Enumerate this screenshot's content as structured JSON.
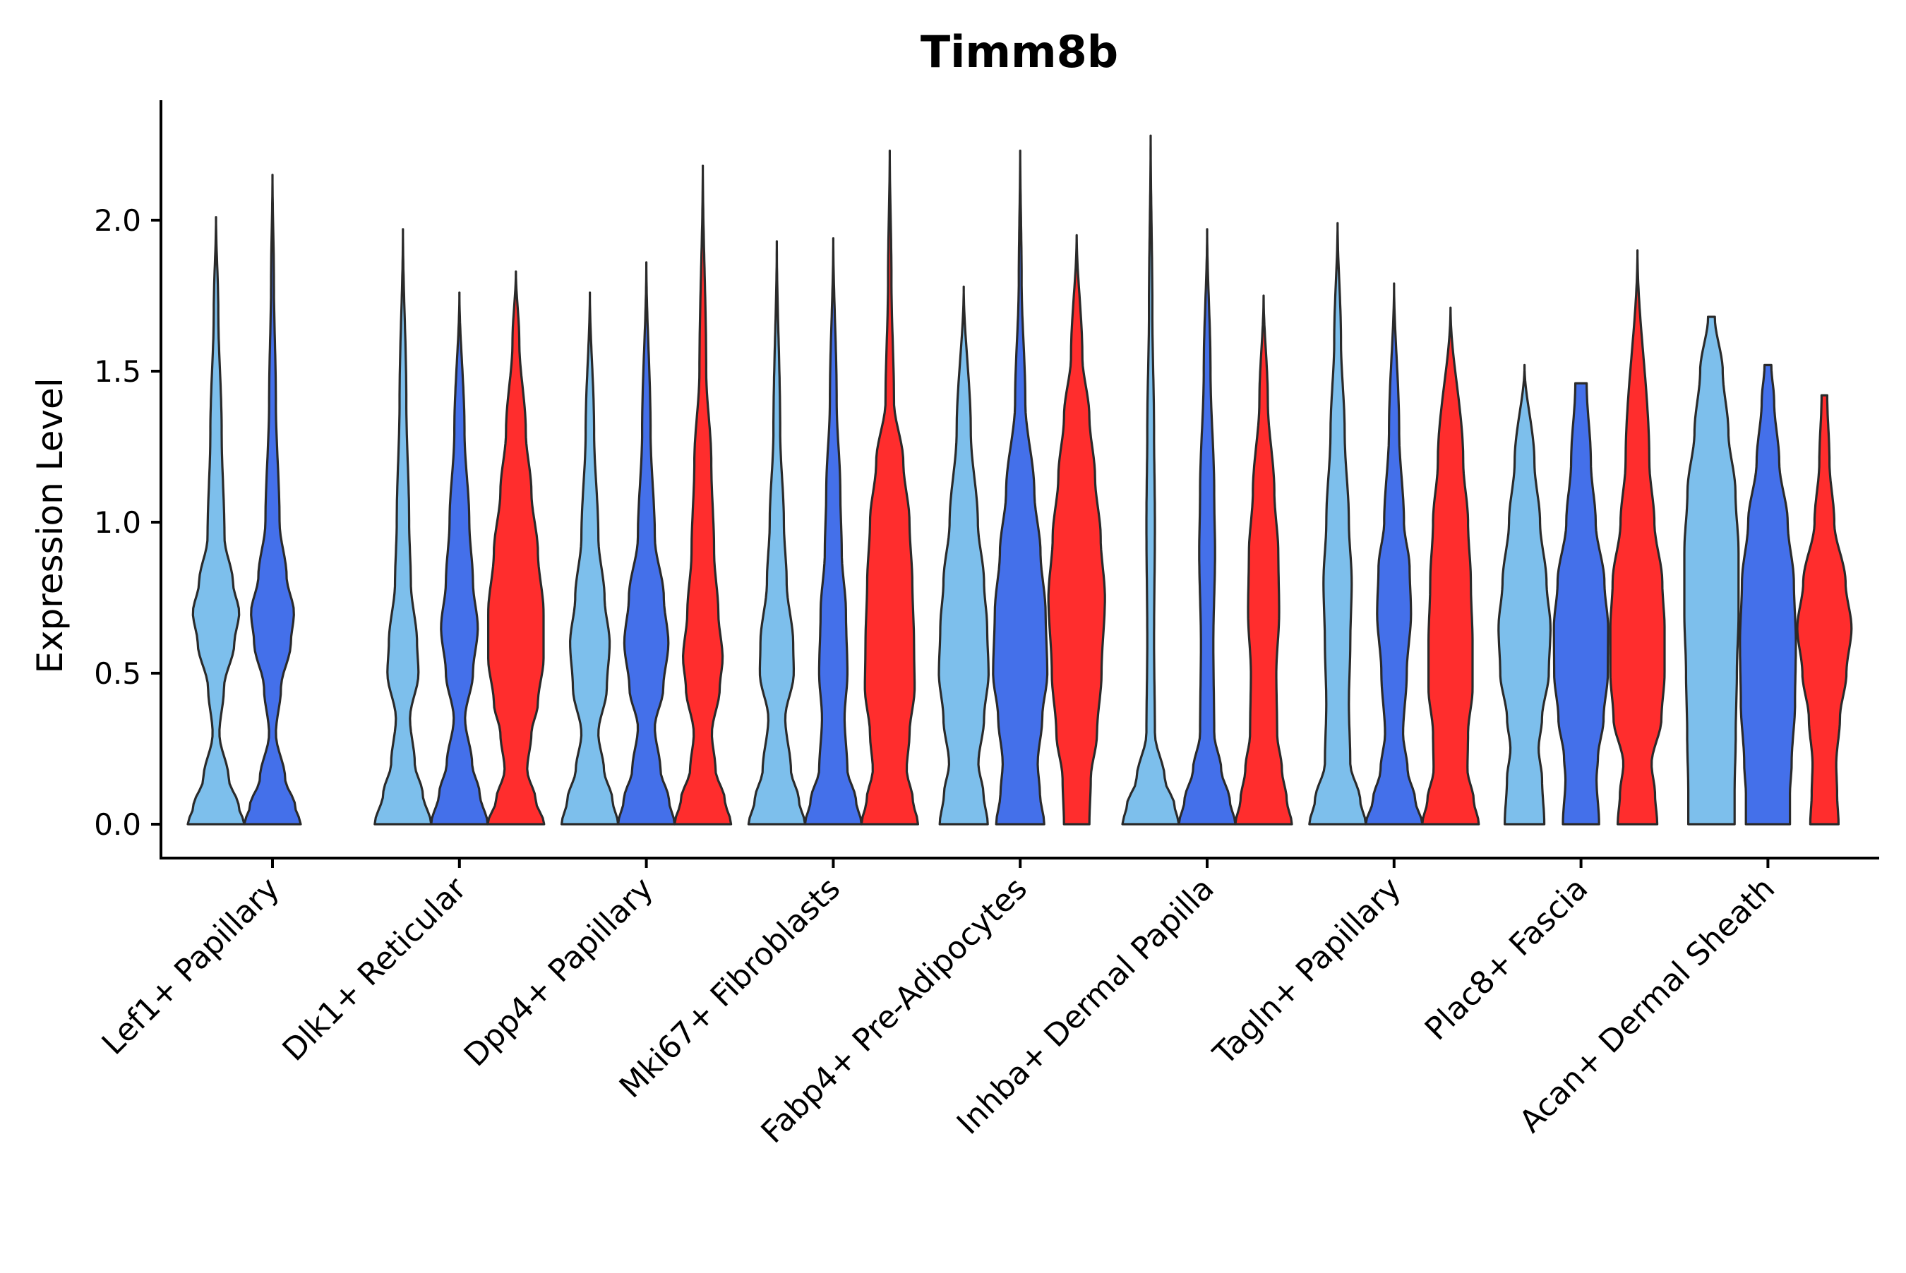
{
  "chart_data": {
    "type": "violin",
    "title": "Timm8b",
    "xlabel": "",
    "ylabel": "Expression Level",
    "ylim": [
      -0.12,
      2.4
    ],
    "yticks": [
      "0.0",
      "0.5",
      "1.0",
      "1.5",
      "2.0"
    ],
    "grid": false,
    "legend": "none",
    "categories": [
      "Lef1+ Papillary",
      "Dlk1+ Reticular",
      "Dpp4+ Papillary",
      "Mki67+ Fibroblasts",
      "Fabp4+ Pre-Adipocytes",
      "Inhba+ Dermal Papilla",
      "Tagln+ Papillary",
      "Plac8+ Fascia",
      "Acan+ Dermal Sheath"
    ],
    "series_colors": [
      "#7dbfec",
      "#4470ea",
      "#ff2d2d"
    ],
    "violins": [
      {
        "category": 0,
        "group": 0,
        "min": 0,
        "max": 2.01,
        "density": [
          [
            0,
            1
          ],
          [
            0.06,
            0.8
          ],
          [
            0.15,
            0.45
          ],
          [
            0.3,
            0.12
          ],
          [
            0.45,
            0.28
          ],
          [
            0.6,
            0.65
          ],
          [
            0.7,
            0.82
          ],
          [
            0.8,
            0.6
          ],
          [
            0.95,
            0.3
          ],
          [
            1.3,
            0.2
          ],
          [
            1.7,
            0.08
          ],
          [
            2.01,
            0
          ]
        ]
      },
      {
        "category": 0,
        "group": 1,
        "min": 0,
        "max": 2.15,
        "density": [
          [
            0,
            1
          ],
          [
            0.06,
            0.8
          ],
          [
            0.15,
            0.45
          ],
          [
            0.3,
            0.12
          ],
          [
            0.45,
            0.3
          ],
          [
            0.6,
            0.65
          ],
          [
            0.7,
            0.76
          ],
          [
            0.82,
            0.5
          ],
          [
            1.0,
            0.25
          ],
          [
            1.4,
            0.12
          ],
          [
            1.8,
            0.05
          ],
          [
            2.15,
            0
          ]
        ]
      },
      {
        "category": 1,
        "group": 0,
        "min": 0,
        "max": 1.97,
        "density": [
          [
            0,
            1
          ],
          [
            0.1,
            0.7
          ],
          [
            0.2,
            0.42
          ],
          [
            0.35,
            0.25
          ],
          [
            0.5,
            0.55
          ],
          [
            0.6,
            0.5
          ],
          [
            0.8,
            0.28
          ],
          [
            1.0,
            0.22
          ],
          [
            1.4,
            0.12
          ],
          [
            1.97,
            0
          ]
        ]
      },
      {
        "category": 1,
        "group": 1,
        "min": 0,
        "max": 1.76,
        "density": [
          [
            0,
            1
          ],
          [
            0.1,
            0.72
          ],
          [
            0.2,
            0.45
          ],
          [
            0.35,
            0.2
          ],
          [
            0.5,
            0.48
          ],
          [
            0.65,
            0.65
          ],
          [
            0.8,
            0.48
          ],
          [
            1.0,
            0.35
          ],
          [
            1.3,
            0.18
          ],
          [
            1.76,
            0
          ]
        ]
      },
      {
        "category": 1,
        "group": 2,
        "min": 0,
        "max": 1.83,
        "density": [
          [
            0,
            1
          ],
          [
            0.08,
            0.7
          ],
          [
            0.18,
            0.4
          ],
          [
            0.3,
            0.55
          ],
          [
            0.4,
            0.78
          ],
          [
            0.55,
            0.98
          ],
          [
            0.7,
            0.98
          ],
          [
            0.9,
            0.78
          ],
          [
            1.1,
            0.55
          ],
          [
            1.3,
            0.35
          ],
          [
            1.6,
            0.12
          ],
          [
            1.83,
            0
          ]
        ]
      },
      {
        "category": 2,
        "group": 0,
        "min": 0,
        "max": 1.76,
        "density": [
          [
            0,
            1
          ],
          [
            0.08,
            0.8
          ],
          [
            0.18,
            0.5
          ],
          [
            0.3,
            0.3
          ],
          [
            0.45,
            0.6
          ],
          [
            0.6,
            0.7
          ],
          [
            0.75,
            0.52
          ],
          [
            0.95,
            0.3
          ],
          [
            1.3,
            0.15
          ],
          [
            1.76,
            0
          ]
        ]
      },
      {
        "category": 2,
        "group": 1,
        "min": 0,
        "max": 1.86,
        "density": [
          [
            0,
            1
          ],
          [
            0.08,
            0.8
          ],
          [
            0.18,
            0.5
          ],
          [
            0.32,
            0.3
          ],
          [
            0.45,
            0.6
          ],
          [
            0.6,
            0.78
          ],
          [
            0.75,
            0.62
          ],
          [
            0.95,
            0.3
          ],
          [
            1.3,
            0.15
          ],
          [
            1.86,
            0
          ]
        ]
      },
      {
        "category": 2,
        "group": 2,
        "min": 0,
        "max": 2.18,
        "density": [
          [
            0,
            1
          ],
          [
            0.08,
            0.78
          ],
          [
            0.18,
            0.45
          ],
          [
            0.3,
            0.32
          ],
          [
            0.45,
            0.6
          ],
          [
            0.55,
            0.7
          ],
          [
            0.7,
            0.55
          ],
          [
            0.9,
            0.4
          ],
          [
            1.2,
            0.3
          ],
          [
            1.5,
            0.12
          ],
          [
            2.18,
            0
          ]
        ]
      },
      {
        "category": 3,
        "group": 0,
        "min": 0,
        "max": 1.93,
        "density": [
          [
            0,
            1
          ],
          [
            0.08,
            0.78
          ],
          [
            0.18,
            0.5
          ],
          [
            0.35,
            0.3
          ],
          [
            0.5,
            0.6
          ],
          [
            0.6,
            0.58
          ],
          [
            0.8,
            0.35
          ],
          [
            1.0,
            0.25
          ],
          [
            1.3,
            0.12
          ],
          [
            1.93,
            0
          ]
        ]
      },
      {
        "category": 3,
        "group": 1,
        "min": 0,
        "max": 1.94,
        "density": [
          [
            0,
            1
          ],
          [
            0.08,
            0.8
          ],
          [
            0.18,
            0.5
          ],
          [
            0.35,
            0.4
          ],
          [
            0.5,
            0.5
          ],
          [
            0.7,
            0.45
          ],
          [
            0.9,
            0.3
          ],
          [
            1.1,
            0.25
          ],
          [
            1.4,
            0.12
          ],
          [
            1.94,
            0
          ]
        ]
      },
      {
        "category": 3,
        "group": 2,
        "min": 0,
        "max": 2.23,
        "density": [
          [
            0,
            1
          ],
          [
            0.08,
            0.82
          ],
          [
            0.18,
            0.6
          ],
          [
            0.3,
            0.7
          ],
          [
            0.45,
            0.88
          ],
          [
            0.6,
            0.86
          ],
          [
            0.8,
            0.8
          ],
          [
            1.0,
            0.7
          ],
          [
            1.2,
            0.48
          ],
          [
            1.4,
            0.15
          ],
          [
            1.8,
            0.06
          ],
          [
            2.23,
            0
          ]
        ]
      },
      {
        "category": 4,
        "group": 0,
        "min": 0,
        "max": 1.78,
        "density": [
          [
            0,
            0.85
          ],
          [
            0.1,
            0.7
          ],
          [
            0.2,
            0.52
          ],
          [
            0.35,
            0.72
          ],
          [
            0.5,
            0.88
          ],
          [
            0.65,
            0.83
          ],
          [
            0.8,
            0.72
          ],
          [
            1.0,
            0.5
          ],
          [
            1.3,
            0.25
          ],
          [
            1.78,
            0
          ]
        ]
      },
      {
        "category": 4,
        "group": 1,
        "min": 0,
        "max": 2.23,
        "density": [
          [
            0,
            0.85
          ],
          [
            0.1,
            0.7
          ],
          [
            0.2,
            0.62
          ],
          [
            0.35,
            0.78
          ],
          [
            0.5,
            0.96
          ],
          [
            0.7,
            0.9
          ],
          [
            0.9,
            0.72
          ],
          [
            1.1,
            0.5
          ],
          [
            1.4,
            0.18
          ],
          [
            1.8,
            0.05
          ],
          [
            2.23,
            0
          ]
        ]
      },
      {
        "category": 4,
        "group": 2,
        "min": 0,
        "max": 1.95,
        "density": [
          [
            0,
            0.45
          ],
          [
            0.15,
            0.5
          ],
          [
            0.3,
            0.72
          ],
          [
            0.5,
            0.88
          ],
          [
            0.75,
            1.0
          ],
          [
            0.95,
            0.85
          ],
          [
            1.15,
            0.65
          ],
          [
            1.35,
            0.45
          ],
          [
            1.55,
            0.2
          ],
          [
            1.95,
            0
          ]
        ]
      },
      {
        "category": 5,
        "group": 0,
        "min": 0,
        "max": 2.28,
        "density": [
          [
            0,
            1
          ],
          [
            0.06,
            0.85
          ],
          [
            0.15,
            0.5
          ],
          [
            0.3,
            0.15
          ],
          [
            0.6,
            0.12
          ],
          [
            1.0,
            0.15
          ],
          [
            1.3,
            0.12
          ],
          [
            1.7,
            0.06
          ],
          [
            2.28,
            0
          ]
        ]
      },
      {
        "category": 5,
        "group": 1,
        "min": 0,
        "max": 1.97,
        "density": [
          [
            0,
            1
          ],
          [
            0.08,
            0.8
          ],
          [
            0.18,
            0.5
          ],
          [
            0.3,
            0.25
          ],
          [
            0.6,
            0.22
          ],
          [
            0.9,
            0.28
          ],
          [
            1.1,
            0.25
          ],
          [
            1.5,
            0.12
          ],
          [
            1.97,
            0
          ]
        ]
      },
      {
        "category": 5,
        "group": 2,
        "min": 0,
        "max": 1.75,
        "density": [
          [
            0,
            1
          ],
          [
            0.08,
            0.82
          ],
          [
            0.18,
            0.65
          ],
          [
            0.3,
            0.48
          ],
          [
            0.5,
            0.45
          ],
          [
            0.7,
            0.55
          ],
          [
            0.9,
            0.52
          ],
          [
            1.1,
            0.38
          ],
          [
            1.4,
            0.15
          ],
          [
            1.75,
            0
          ]
        ]
      },
      {
        "category": 6,
        "group": 0,
        "min": 0,
        "max": 1.99,
        "density": [
          [
            0,
            1
          ],
          [
            0.08,
            0.8
          ],
          [
            0.2,
            0.45
          ],
          [
            0.4,
            0.4
          ],
          [
            0.6,
            0.45
          ],
          [
            0.8,
            0.5
          ],
          [
            1.0,
            0.4
          ],
          [
            1.3,
            0.25
          ],
          [
            1.6,
            0.12
          ],
          [
            1.99,
            0
          ]
        ]
      },
      {
        "category": 6,
        "group": 1,
        "min": 0,
        "max": 1.79,
        "density": [
          [
            0,
            1
          ],
          [
            0.08,
            0.75
          ],
          [
            0.18,
            0.48
          ],
          [
            0.3,
            0.32
          ],
          [
            0.5,
            0.45
          ],
          [
            0.7,
            0.6
          ],
          [
            0.85,
            0.55
          ],
          [
            1.0,
            0.35
          ],
          [
            1.3,
            0.18
          ],
          [
            1.79,
            0
          ]
        ]
      },
      {
        "category": 6,
        "group": 2,
        "min": 0,
        "max": 1.71,
        "density": [
          [
            0,
            1
          ],
          [
            0.08,
            0.82
          ],
          [
            0.18,
            0.6
          ],
          [
            0.3,
            0.62
          ],
          [
            0.45,
            0.78
          ],
          [
            0.6,
            0.78
          ],
          [
            0.8,
            0.72
          ],
          [
            1.0,
            0.62
          ],
          [
            1.2,
            0.45
          ],
          [
            1.71,
            0
          ]
        ]
      },
      {
        "category": 7,
        "group": 0,
        "min": 0,
        "max": 1.52,
        "density": [
          [
            0,
            0.7
          ],
          [
            0.15,
            0.62
          ],
          [
            0.25,
            0.5
          ],
          [
            0.35,
            0.62
          ],
          [
            0.5,
            0.86
          ],
          [
            0.65,
            0.92
          ],
          [
            0.8,
            0.78
          ],
          [
            1.0,
            0.55
          ],
          [
            1.2,
            0.35
          ],
          [
            1.52,
            0
          ]
        ]
      },
      {
        "category": 7,
        "group": 1,
        "min": 0,
        "max": 1.46,
        "density": [
          [
            0,
            0.64
          ],
          [
            0.15,
            0.55
          ],
          [
            0.22,
            0.6
          ],
          [
            0.35,
            0.8
          ],
          [
            0.5,
            0.95
          ],
          [
            0.65,
            0.96
          ],
          [
            0.8,
            0.83
          ],
          [
            1.0,
            0.52
          ],
          [
            1.2,
            0.35
          ],
          [
            1.46,
            0.2
          ]
        ]
      },
      {
        "category": 7,
        "group": 2,
        "min": 0,
        "max": 1.9,
        "density": [
          [
            0,
            0.7
          ],
          [
            0.1,
            0.62
          ],
          [
            0.2,
            0.5
          ],
          [
            0.35,
            0.85
          ],
          [
            0.5,
            0.96
          ],
          [
            0.65,
            0.96
          ],
          [
            0.8,
            0.88
          ],
          [
            1.0,
            0.6
          ],
          [
            1.2,
            0.42
          ],
          [
            1.9,
            0
          ]
        ]
      },
      {
        "category": 8,
        "group": 0,
        "min": 0,
        "max": 1.68,
        "density": [
          [
            0,
            0.82
          ],
          [
            0.1,
            0.82
          ],
          [
            0.3,
            0.86
          ],
          [
            0.5,
            0.9
          ],
          [
            0.7,
            0.96
          ],
          [
            0.9,
            0.96
          ],
          [
            1.1,
            0.85
          ],
          [
            1.3,
            0.6
          ],
          [
            1.5,
            0.4
          ],
          [
            1.68,
            0.12
          ]
        ]
      },
      {
        "category": 8,
        "group": 1,
        "min": 0,
        "max": 1.52,
        "density": [
          [
            0,
            0.78
          ],
          [
            0.1,
            0.78
          ],
          [
            0.2,
            0.84
          ],
          [
            0.4,
            0.96
          ],
          [
            0.6,
            0.99
          ],
          [
            0.8,
            0.92
          ],
          [
            1.0,
            0.7
          ],
          [
            1.2,
            0.4
          ],
          [
            1.4,
            0.22
          ],
          [
            1.52,
            0.12
          ]
        ]
      },
      {
        "category": 8,
        "group": 2,
        "min": 0,
        "max": 1.42,
        "density": [
          [
            0,
            0.5
          ],
          [
            0.1,
            0.45
          ],
          [
            0.2,
            0.42
          ],
          [
            0.35,
            0.55
          ],
          [
            0.5,
            0.78
          ],
          [
            0.65,
            0.96
          ],
          [
            0.8,
            0.75
          ],
          [
            1.0,
            0.35
          ],
          [
            1.2,
            0.18
          ],
          [
            1.42,
            0.1
          ]
        ]
      }
    ]
  }
}
